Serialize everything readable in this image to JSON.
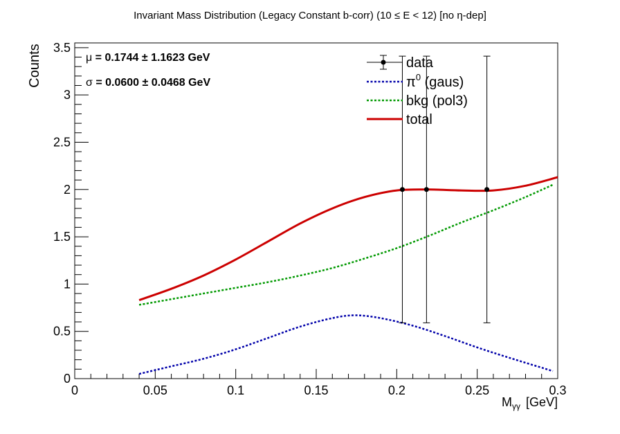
{
  "chart_data": {
    "type": "line",
    "title": "Invariant Mass Distribution (Legacy Constant b-corr)   (10 ≤ E < 12)   [no η-dep]",
    "title_plain": "Invariant Mass Distribution (Legacy Constant b-corr)   (10 ",
    "title_rest": " E < 12)   [no ",
    "title_end": "-dep]",
    "title_le": "≤",
    "title_eta": "η",
    "xlabel_main": "M",
    "xlabel_sub": "γγ",
    "xlabel_unit": "[GeV]",
    "ylabel": "Counts",
    "xlim": [
      0,
      0.3
    ],
    "ylim": [
      0,
      3.55
    ],
    "x_ticks": [
      0,
      0.05,
      0.1,
      0.15,
      0.2,
      0.25,
      0.3
    ],
    "x_tick_labels": [
      "0",
      "0.05",
      "0.1",
      "0.15",
      "0.2",
      "0.25",
      "0.3"
    ],
    "y_ticks": [
      0,
      0.5,
      1,
      1.5,
      2,
      2.5,
      3,
      3.5
    ],
    "y_tick_labels": [
      "0",
      "0.5",
      "1",
      "1.5",
      "2",
      "2.5",
      "3",
      "3.5"
    ],
    "grid": false,
    "legend_position": "top-right",
    "fit_text": {
      "mu_symbol": "μ",
      "mu_text": " = 0.1744  ± 1.1623 GeV",
      "sigma_symbol": "σ",
      "sigma_text": " = 0.0600  ± 0.0468 GeV"
    },
    "data": {
      "name": "data",
      "x": [
        0.2035,
        0.2185,
        0.256
      ],
      "y": [
        2.0,
        2.0,
        2.0
      ],
      "yerr_low": [
        1.41,
        1.41,
        1.41
      ],
      "yerr_high": [
        1.41,
        1.41,
        1.41
      ],
      "color": "#000000"
    },
    "series": [
      {
        "name": "total",
        "legend_label": "total",
        "style": "solid",
        "color": "#cc0000",
        "x": [
          0.04,
          0.06,
          0.08,
          0.1,
          0.12,
          0.14,
          0.16,
          0.18,
          0.2,
          0.22,
          0.24,
          0.26,
          0.28,
          0.3
        ],
        "y": [
          0.83,
          0.95,
          1.09,
          1.26,
          1.45,
          1.64,
          1.8,
          1.92,
          1.99,
          2.0,
          1.99,
          1.99,
          2.04,
          2.13
        ]
      },
      {
        "name": "bkg",
        "legend_label": "bkg (pol3)",
        "style": "dotted",
        "color": "#009900",
        "x": [
          0.04,
          0.06,
          0.08,
          0.1,
          0.12,
          0.14,
          0.16,
          0.18,
          0.2,
          0.22,
          0.24,
          0.26,
          0.28,
          0.297
        ],
        "y": [
          0.78,
          0.84,
          0.9,
          0.96,
          1.02,
          1.09,
          1.17,
          1.27,
          1.38,
          1.51,
          1.65,
          1.78,
          1.92,
          2.05
        ]
      },
      {
        "name": "pi0",
        "legend_label_symbol": "π",
        "legend_label_sup": "0",
        "legend_label_rest": " (gaus)",
        "style": "dotted",
        "color": "#0000aa",
        "x": [
          0.04,
          0.06,
          0.08,
          0.1,
          0.12,
          0.14,
          0.16,
          0.1744,
          0.19,
          0.21,
          0.23,
          0.25,
          0.27,
          0.297
        ],
        "y": [
          0.05,
          0.13,
          0.21,
          0.31,
          0.43,
          0.55,
          0.64,
          0.67,
          0.64,
          0.56,
          0.45,
          0.33,
          0.22,
          0.08
        ]
      }
    ],
    "legend_order": [
      "data",
      "pi0",
      "bkg",
      "total"
    ]
  }
}
